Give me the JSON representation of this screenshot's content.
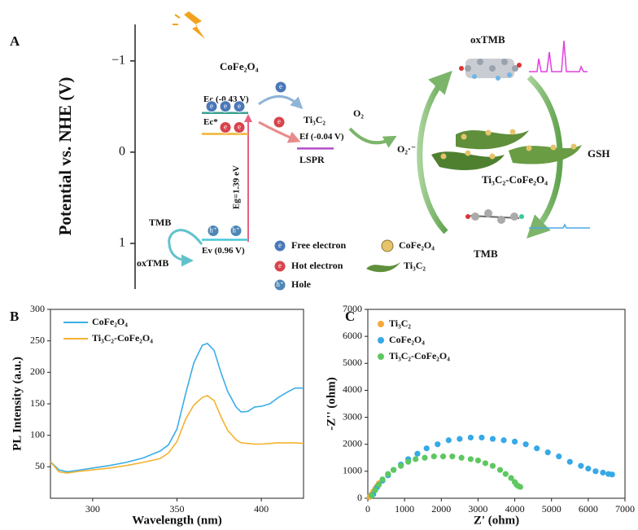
{
  "chart_data": [
    {
      "type": "energy-diagram",
      "panel_label": "A",
      "ylabel": "Potential vs. NHE (V)",
      "ylim": [
        -1.4,
        1.5
      ],
      "inverted": true,
      "yticks": [
        {
          "value": -1,
          "label": "−1"
        },
        0,
        1
      ],
      "material": "CoFe₂O₄",
      "levels": [
        {
          "label": "Ec (-0.43 V)",
          "value": -0.43,
          "color": "#3a9f8f"
        },
        {
          "label": "Ec*",
          "value": -0.2,
          "color": "#f0b431"
        },
        {
          "label": "Ef (-0.04 V)",
          "value": -0.04,
          "color": "#b24fc8"
        },
        {
          "label": "Ev (0.96 V)",
          "value": 0.96,
          "color": "#48c6d8"
        }
      ],
      "band_gap": "Eg=1.39 eV",
      "cocatalyst": "Ti₃C₂",
      "lspr": "LSPR",
      "oxygen": "O₂",
      "superoxide": "O₂·⁻",
      "left_substrate": "TMB",
      "left_product": "oxTMB",
      "right_top": "oxTMB",
      "right_bottom": "TMB",
      "reductant": "GSH",
      "composite": "Ti₃C₂-CoFe₂O₄",
      "electron_symbol": "e",
      "hole_symbol": "h⁺",
      "legend": [
        "Free electron",
        "Hot electron",
        "Hole",
        "CoFe₂O₄",
        "Ti₃C₂"
      ]
    },
    {
      "type": "line",
      "panel_label": "B",
      "xlabel": "Wavelength (nm)",
      "ylabel": "PL Intensity (a.u.)",
      "xlim": [
        275,
        425
      ],
      "ylim": [
        0,
        300
      ],
      "xticks": [
        300,
        350,
        400
      ],
      "yticks": [
        50,
        100,
        150,
        200,
        250,
        300
      ],
      "x": [
        275,
        280,
        285,
        290,
        300,
        310,
        320,
        330,
        340,
        345,
        350,
        355,
        360,
        365,
        368,
        372,
        376,
        380,
        385,
        388,
        392,
        396,
        400,
        405,
        410,
        415,
        420,
        425
      ],
      "series": [
        {
          "name": "CoFe₂O₄",
          "color": "#3aaee6",
          "values": [
            58,
            45,
            42,
            44,
            48,
            52,
            57,
            64,
            75,
            85,
            110,
            165,
            215,
            243,
            246,
            235,
            200,
            170,
            145,
            137,
            138,
            145,
            146,
            150,
            160,
            168,
            175,
            175
          ]
        },
        {
          "name": "Ti₃C₂-CoFe₂O₄",
          "color": "#f4b22e",
          "values": [
            58,
            42,
            40,
            42,
            45,
            48,
            52,
            57,
            63,
            72,
            90,
            125,
            148,
            160,
            163,
            155,
            130,
            108,
            93,
            88,
            87,
            86,
            86,
            87,
            88,
            88,
            88,
            87
          ]
        }
      ]
    },
    {
      "type": "scatter",
      "panel_label": "C",
      "xlabel": "Z' (ohm)",
      "ylabel": "-Z'' (ohm)",
      "xlim": [
        0,
        7000
      ],
      "ylim": [
        0,
        7000
      ],
      "xticks": [
        0,
        1000,
        2000,
        3000,
        4000,
        5000,
        6000,
        7000
      ],
      "yticks": [
        0,
        1000,
        2000,
        3000,
        4000,
        5000,
        6000,
        7000
      ],
      "series": [
        {
          "name": "Ti₃C₂",
          "color": "#f6a93b",
          "x": [
            50,
            100,
            150,
            200,
            250,
            300
          ],
          "values": [
            50,
            150,
            250,
            350,
            450,
            550
          ]
        },
        {
          "name": "CoFe₂O₄",
          "color": "#36a9e6",
          "x": [
            150,
            250,
            400,
            550,
            700,
            900,
            1100,
            1350,
            1600,
            1900,
            2200,
            2500,
            2800,
            3100,
            3400,
            3700,
            4000,
            4300,
            4600,
            4900,
            5200,
            5500,
            5800,
            6000,
            6200,
            6400,
            6550,
            6650
          ],
          "values": [
            150,
            400,
            650,
            850,
            1050,
            1250,
            1450,
            1650,
            1850,
            2000,
            2150,
            2200,
            2250,
            2250,
            2200,
            2150,
            2100,
            2000,
            1850,
            1700,
            1550,
            1350,
            1200,
            1100,
            1000,
            950,
            900,
            880
          ]
        },
        {
          "name": "Ti₃C₂-CoFe₂O₄",
          "color": "#5ec760",
          "x": [
            100,
            200,
            300,
            400,
            550,
            700,
            900,
            1100,
            1300,
            1550,
            1800,
            2050,
            2300,
            2550,
            2800,
            3000,
            3200,
            3400,
            3600,
            3750,
            3900,
            4000,
            4050,
            4100,
            4150
          ],
          "values": [
            100,
            300,
            500,
            700,
            900,
            1050,
            1200,
            1350,
            1450,
            1500,
            1550,
            1550,
            1550,
            1500,
            1450,
            1400,
            1300,
            1200,
            1050,
            900,
            750,
            600,
            500,
            450,
            420
          ]
        }
      ]
    }
  ]
}
